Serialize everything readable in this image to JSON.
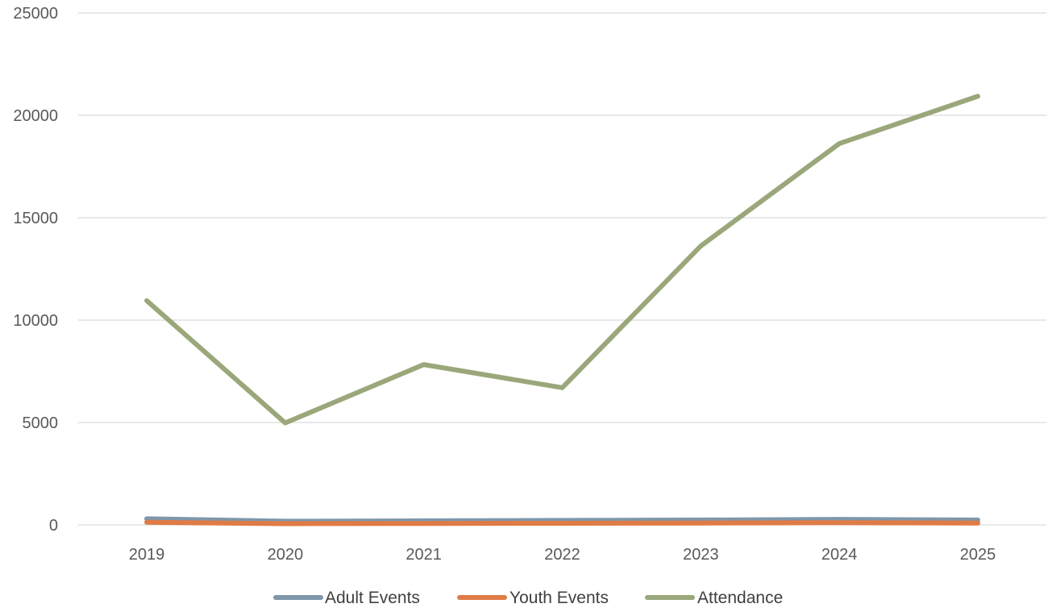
{
  "chart_data": {
    "type": "line",
    "title": "",
    "xlabel": "",
    "ylabel": "",
    "categories": [
      "2019",
      "2020",
      "2021",
      "2022",
      "2023",
      "2024",
      "2025"
    ],
    "ylim": [
      0,
      25000
    ],
    "yticks": [
      "0",
      "5000",
      "10000",
      "15000",
      "20000",
      "25000"
    ],
    "grid": true,
    "legend_position": "bottom",
    "series": [
      {
        "name": "Adult Events",
        "color": "#7f97aa",
        "values": [
          300,
          180,
          200,
          220,
          240,
          270,
          240
        ]
      },
      {
        "name": "Youth Events",
        "color": "#e07b45",
        "values": [
          130,
          60,
          70,
          80,
          90,
          110,
          90
        ]
      },
      {
        "name": "Attendance",
        "color": "#9aa77a",
        "values": [
          10950,
          4980,
          7830,
          6700,
          13620,
          18620,
          20930
        ]
      }
    ]
  }
}
